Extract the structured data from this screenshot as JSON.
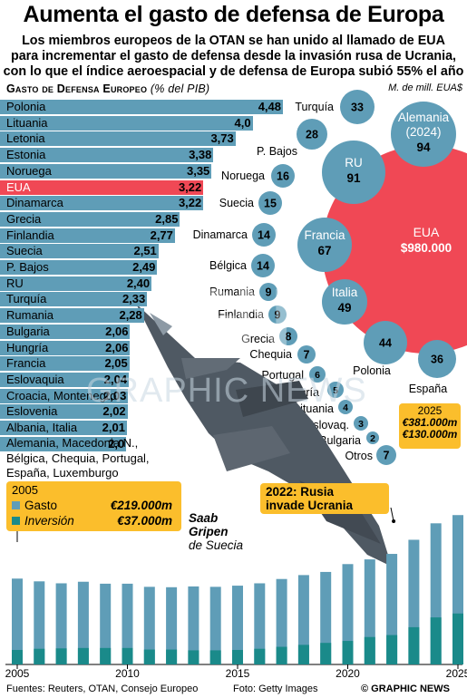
{
  "title": "Aumenta el gasto de defensa de Europa",
  "subtitle_lines": [
    "Los miembros europeos de la OTAN se han unido al llamado de EUA",
    "para incrementar el gasto de defensa desde la invasión rusa de Ucrania,",
    "con lo que el índice aeroespacial y de defensa de Europa subió 55% el año"
  ],
  "bar_chart_title": "Gasto de Defensa Europeo",
  "bar_chart_unit": "(% del PIB)",
  "bubble_unit": "M. de mill. EUA$",
  "colors": {
    "bar": "#5f9db7",
    "highlight": "#f04855",
    "bubble": "#5f9db7",
    "callout": "#fbbe2c",
    "investment": "#1a8a8a"
  },
  "chart_data": [
    {
      "type": "bar",
      "title": "Gasto de Defensa Europeo (% del PIB)",
      "xlim": [
        0,
        4.48
      ],
      "highlight": "EUA",
      "categories": [
        "Polonia",
        "Lituania",
        "Letonia",
        "Estonia",
        "Noruega",
        "EUA",
        "Dinamarca",
        "Grecia",
        "Finlandia",
        "Suecia",
        "P. Bajos",
        "RU",
        "Turquía",
        "Rumania",
        "Bulgaria",
        "Hungría",
        "Francia",
        "Eslovaquia",
        "Croacia, Montenegro",
        "Eslovenia",
        "Albania, Italia",
        ""
      ],
      "labels": [
        "4,48",
        "4,0",
        "3,73",
        "3,38",
        "3,35",
        "3,22",
        "3,22",
        "2,85",
        "2,77",
        "2,51",
        "2,49",
        "2,40",
        "2,33",
        "2,28",
        "2,06",
        "2,06",
        "2,05",
        "2,04",
        "2,03",
        "2,02",
        "2,01",
        "2,0"
      ],
      "values": [
        4.48,
        4.0,
        3.73,
        3.38,
        3.35,
        3.22,
        3.22,
        2.85,
        2.77,
        2.51,
        2.49,
        2.4,
        2.33,
        2.28,
        2.06,
        2.06,
        2.05,
        2.04,
        2.03,
        2.02,
        2.01,
        2.0
      ],
      "rest_note": [
        "Alemania, Macedonia N.,",
        "Bélgica, Chequia, Portugal,",
        "España, Luxemburgo"
      ]
    },
    {
      "type": "bubble",
      "title": "M. de mill. EUA$",
      "items": [
        {
          "name": "EUA",
          "label": "$980.000",
          "value": 980000
        },
        {
          "name": "Alemania (2024)",
          "value": 94
        },
        {
          "name": "RU",
          "value": 91
        },
        {
          "name": "Francia",
          "value": 67
        },
        {
          "name": "Italia",
          "value": 49
        },
        {
          "name": "Polonia",
          "value": 44
        },
        {
          "name": "España",
          "value": 36
        },
        {
          "name": "Turquía",
          "value": 33
        },
        {
          "name": "P. Bajos",
          "value": 28
        },
        {
          "name": "Noruega",
          "value": 16
        },
        {
          "name": "Suecia",
          "value": 15
        },
        {
          "name": "Dinamarca",
          "value": 14
        },
        {
          "name": "Bélgica",
          "value": 14
        },
        {
          "name": "Rumania",
          "value": 9
        },
        {
          "name": "Finlandia",
          "value": 9
        },
        {
          "name": "Grecia",
          "value": 8
        },
        {
          "name": "Chequia",
          "value": 7
        },
        {
          "name": "Portugal",
          "value": 6
        },
        {
          "name": "Hungría",
          "value": 5
        },
        {
          "name": "Lituania",
          "value": 4
        },
        {
          "name": "Eslovaq.",
          "value": 3
        },
        {
          "name": "Bulgaria",
          "value": 2
        },
        {
          "name": "Otros",
          "value": 7
        }
      ]
    },
    {
      "type": "bar",
      "x": [
        2005,
        2006,
        2007,
        2008,
        2009,
        2010,
        2011,
        2012,
        2013,
        2014,
        2015,
        2016,
        2017,
        2018,
        2019,
        2020,
        2021,
        2022,
        2023,
        2024,
        2025
      ],
      "xticks": [
        "2005",
        "2010",
        "2015",
        "2020",
        "2025"
      ],
      "series": [
        {
          "name": "Gasto",
          "values": [
            219,
            212,
            207,
            211,
            206,
            206,
            198,
            197,
            199,
            198,
            201,
            207,
            218,
            228,
            236,
            256,
            268,
            282,
            318,
            360,
            381
          ]
        },
        {
          "name": "Inversión",
          "values": [
            37,
            40,
            41,
            42,
            42,
            42,
            38,
            38,
            36,
            36,
            37,
            40,
            45,
            50,
            55,
            60,
            70,
            75,
            95,
            120,
            130
          ]
        }
      ],
      "ylim": [
        0,
        400
      ]
    }
  ],
  "legend": {
    "year": "2005",
    "gasto_label": "Gasto",
    "gasto_value": "€219.000m",
    "inversion_label": "Inversión",
    "inversion_value": "€37.000m"
  },
  "callout_2025": {
    "year": "2025",
    "gasto": "€381.000m",
    "inversion": "€130.000m"
  },
  "callout_2022": {
    "line1": "2022: Rusia",
    "line2": "invade Ucrania"
  },
  "photo_caption": {
    "line1": "Saab",
    "line2": "Gripen",
    "line3": "de Suecia"
  },
  "footer": {
    "sources": "Fuentes: Reuters, OTAN, Consejo Europeo",
    "photo": "Foto: Getty Images",
    "credit": "© GRAPHIC NEWS"
  },
  "watermark": {
    "mark": "GN",
    "text": "GRAPHIC NEWS"
  }
}
